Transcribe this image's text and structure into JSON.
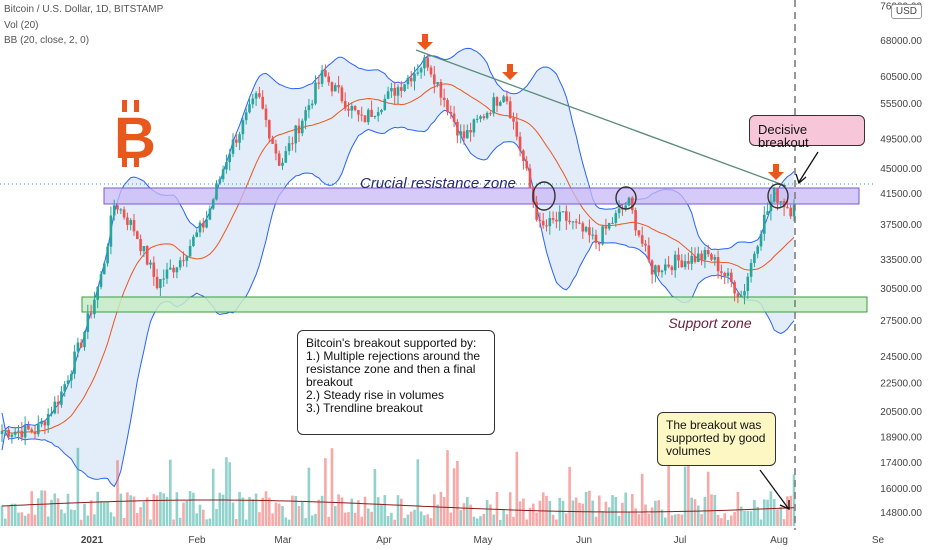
{
  "header": {
    "symbol_line": "Bitcoin / U.S. Dollar, 1D, BITSTAMP",
    "vol_line": "Vol (20)",
    "bb_line": "BB (20, close, 2, 0)",
    "currency_badge": "USD"
  },
  "colors": {
    "bitcoin_orange": "#f7931a",
    "arrow_orange": "#e8571b",
    "up_candle": "#26a69a",
    "down_candle": "#ef5350",
    "band_fill": "#dbe9f7",
    "band_line": "#2962ff",
    "basis_line": "#f0541e",
    "resistance_fill": "#c8b8f5",
    "support_fill": "#c7ecc5",
    "trendline": "#5a8a7a",
    "label_purple": "#2a2a7a",
    "label_maroon": "#6b1e3a",
    "pink_box": "#f7c6d8",
    "yellow_box": "#fdf7c3"
  },
  "icons": {
    "logo": "bitcoin-logo"
  },
  "annotations": {
    "resistance_label": "Crucial resistance zone",
    "support_label": "Support zone",
    "decisive_breakout": "Decisive breakout",
    "breakout_volumes": "The breakout was supported by good volumes",
    "summary_title": "Bitcoin's breakout supported by:",
    "summary_point_1": "1.) Multiple rejections around the resistance zone and then a final breakout",
    "summary_point_2": "2.) Steady rise in volumes",
    "summary_point_3": "3.) Trendline breakout"
  },
  "chart_data": {
    "type": "candlestick",
    "title": "Bitcoin / U.S. Dollar, 1D, BITSTAMP",
    "y_scale": "log",
    "y_ticks": [
      "76000.00",
      "68000.00",
      "60500.00",
      "55500.00",
      "49500.00",
      "45000.00",
      "41500.00",
      "37500.00",
      "33500.00",
      "30500.00",
      "27500.00",
      "24500.00",
      "22500.00",
      "20500.00",
      "18900.00",
      "17400.00",
      "16000.00",
      "14800.00"
    ],
    "x_ticks": [
      "2021",
      "Feb",
      "Mar",
      "Apr",
      "May",
      "Jun",
      "Jul",
      "Aug",
      "Se"
    ],
    "current_price_line": 43000,
    "resistance_zone": [
      40000,
      42200
    ],
    "support_zone": [
      28700,
      29900
    ],
    "close_path": [
      {
        "date": "2020-12-15",
        "close": 19300
      },
      {
        "date": "2020-12-22",
        "close": 21500
      },
      {
        "date": "2020-12-29",
        "close": 26000
      },
      {
        "date": "2021-01-04",
        "close": 32000
      },
      {
        "date": "2021-01-08",
        "close": 40500
      },
      {
        "date": "2021-01-14",
        "close": 37000
      },
      {
        "date": "2021-01-21",
        "close": 31000
      },
      {
        "date": "2021-01-28",
        "close": 33500
      },
      {
        "date": "2021-02-05",
        "close": 38000
      },
      {
        "date": "2021-02-12",
        "close": 47500
      },
      {
        "date": "2021-02-21",
        "close": 57000
      },
      {
        "date": "2021-02-28",
        "close": 45500
      },
      {
        "date": "2021-03-13",
        "close": 61000
      },
      {
        "date": "2021-03-25",
        "close": 52500
      },
      {
        "date": "2021-04-05",
        "close": 58500
      },
      {
        "date": "2021-04-14",
        "close": 64000
      },
      {
        "date": "2021-04-25",
        "close": 49500
      },
      {
        "date": "2021-05-08",
        "close": 58000
      },
      {
        "date": "2021-05-12",
        "close": 49500
      },
      {
        "date": "2021-05-19",
        "close": 37000
      },
      {
        "date": "2021-05-26",
        "close": 38500
      },
      {
        "date": "2021-06-05",
        "close": 35500
      },
      {
        "date": "2021-06-15",
        "close": 40500
      },
      {
        "date": "2021-06-22",
        "close": 32500
      },
      {
        "date": "2021-07-01",
        "close": 33500
      },
      {
        "date": "2021-07-10",
        "close": 34000
      },
      {
        "date": "2021-07-20",
        "close": 29800
      },
      {
        "date": "2021-07-26",
        "close": 37500
      },
      {
        "date": "2021-07-30",
        "close": 41500
      },
      {
        "date": "2021-08-04",
        "close": 39500
      },
      {
        "date": "2021-08-07",
        "close": 43500
      }
    ],
    "rejection_markers": [
      "2021-05-19",
      "2021-06-15",
      "2021-08-01"
    ],
    "trendline": [
      {
        "date": "2021-04-14",
        "price": 65000
      },
      {
        "date": "2021-08-01",
        "price": 43000
      }
    ],
    "volume": {
      "label": "Vol (20)",
      "ma_period": 20
    }
  }
}
